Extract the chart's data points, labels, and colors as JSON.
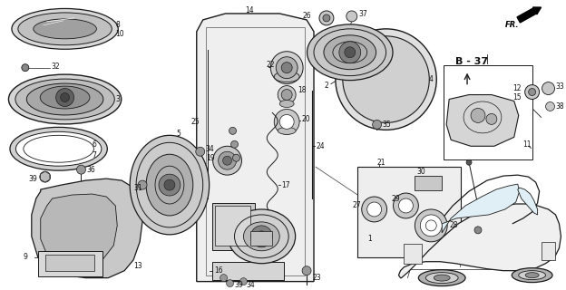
{
  "bg_color": "#ffffff",
  "line_color": "#1a1a1a",
  "label_color": "#111111",
  "fig_width": 6.24,
  "fig_height": 3.2,
  "dpi": 100
}
